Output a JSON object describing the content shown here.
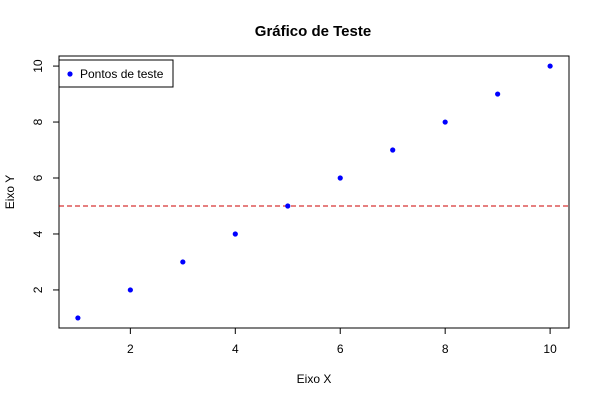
{
  "chart_data": {
    "type": "scatter",
    "title": "Gráfico de Teste",
    "xlabel": "Eixo X",
    "ylabel": "Eixo Y",
    "xlim": [
      0.64,
      10.36
    ],
    "ylim": [
      0.64,
      10.36
    ],
    "x_ticks": [
      2,
      4,
      6,
      8,
      10
    ],
    "y_ticks": [
      2,
      4,
      6,
      8,
      10
    ],
    "grid": false,
    "legend_position": "top-left",
    "series": [
      {
        "name": "Pontos de teste",
        "color": "#0000ff",
        "x": [
          1,
          2,
          3,
          4,
          5,
          6,
          7,
          8,
          9,
          10
        ],
        "y": [
          1,
          2,
          3,
          4,
          5,
          6,
          7,
          8,
          9,
          10
        ]
      }
    ],
    "hline": {
      "y": 5,
      "color": "#cc0000",
      "style": "dashed"
    }
  }
}
